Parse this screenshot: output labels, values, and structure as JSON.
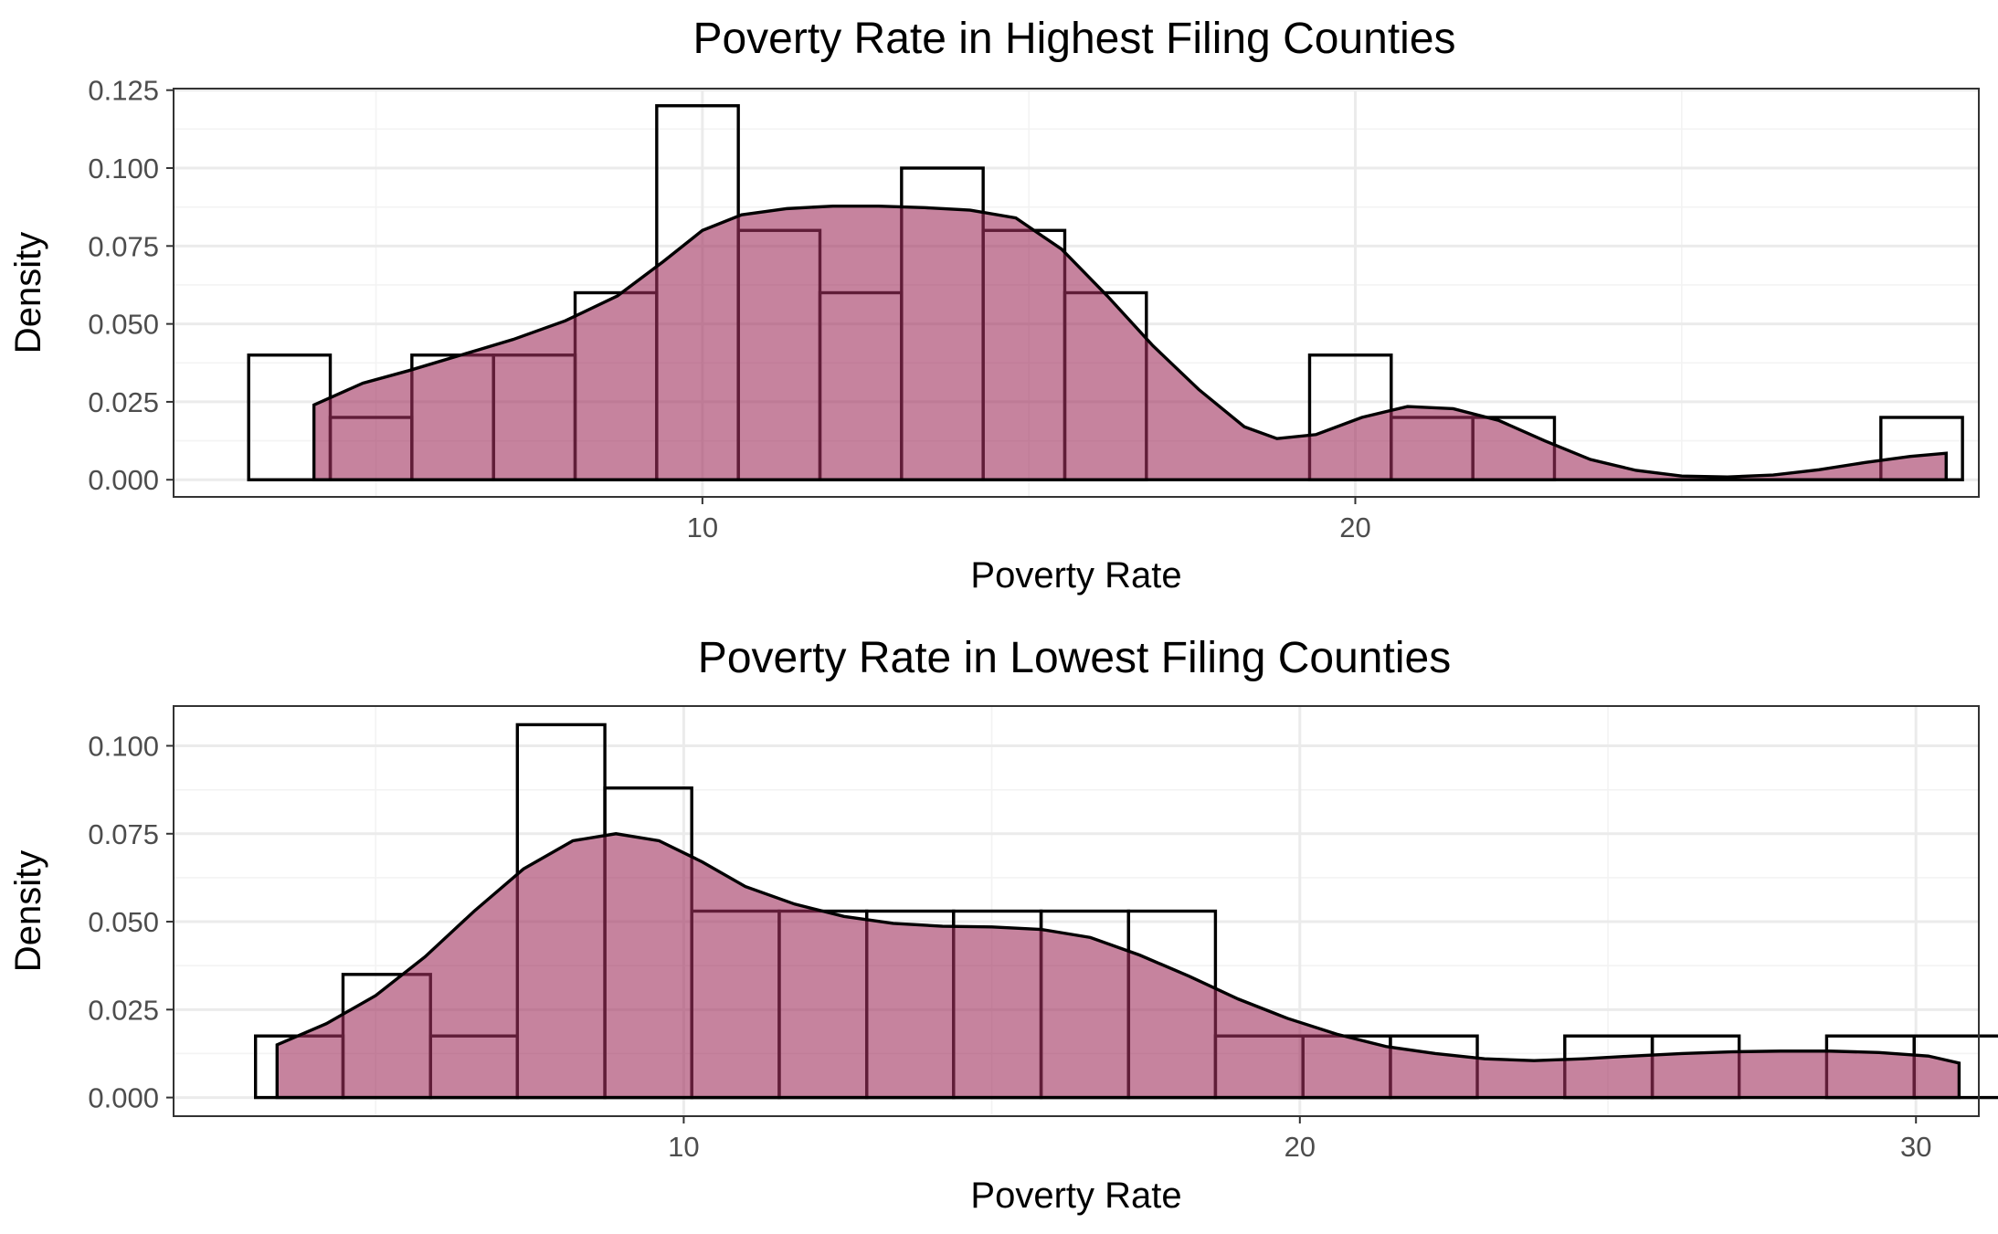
{
  "colors": {
    "density_fill": "#a0315e",
    "density_fill_opacity": 0.6,
    "bar_outline": "#000000",
    "panel_background": "#ffffff",
    "grid": "#ebebeb"
  },
  "chart_data": [
    {
      "type": "histogram",
      "title": "Poverty Rate in Highest Filing Counties",
      "xlabel": "Poverty Rate",
      "ylabel": "Density",
      "xlim": [
        1.9,
        29.55
      ],
      "ylim": [
        -0.0055,
        0.1255
      ],
      "x_ticks": [
        10,
        20
      ],
      "x_tick_labels": [
        "10",
        "20"
      ],
      "x_minor_ticks": [
        5,
        15,
        25
      ],
      "y_ticks": [
        0,
        0.025,
        0.05,
        0.075,
        0.1,
        0.125
      ],
      "y_tick_labels": [
        "0.000",
        "0.025",
        "0.050",
        "0.075",
        "0.100",
        "0.125"
      ],
      "grid": true,
      "bins": [
        {
          "x0": 3.05,
          "x1": 4.3,
          "density": 0.04
        },
        {
          "x0": 4.3,
          "x1": 5.55,
          "density": 0.02
        },
        {
          "x0": 5.55,
          "x1": 6.8,
          "density": 0.04
        },
        {
          "x0": 6.8,
          "x1": 8.05,
          "density": 0.04
        },
        {
          "x0": 8.05,
          "x1": 9.3,
          "density": 0.06
        },
        {
          "x0": 9.3,
          "x1": 10.55,
          "density": 0.12
        },
        {
          "x0": 10.55,
          "x1": 11.8,
          "density": 0.08
        },
        {
          "x0": 11.8,
          "x1": 13.05,
          "density": 0.06
        },
        {
          "x0": 13.05,
          "x1": 14.3,
          "density": 0.1
        },
        {
          "x0": 14.3,
          "x1": 15.55,
          "density": 0.08
        },
        {
          "x0": 15.55,
          "x1": 16.8,
          "density": 0.06
        },
        {
          "x0": 16.8,
          "x1": 18.05,
          "density": 0.0
        },
        {
          "x0": 18.05,
          "x1": 19.3,
          "density": 0.0
        },
        {
          "x0": 19.3,
          "x1": 20.55,
          "density": 0.04
        },
        {
          "x0": 20.55,
          "x1": 21.8,
          "density": 0.02
        },
        {
          "x0": 21.8,
          "x1": 23.05,
          "density": 0.02
        },
        {
          "x0": 23.05,
          "x1": 24.3,
          "density": 0.0
        },
        {
          "x0": 24.3,
          "x1": 25.55,
          "density": 0.0
        },
        {
          "x0": 25.55,
          "x1": 26.8,
          "density": 0.0
        },
        {
          "x0": 26.8,
          "x1": 28.05,
          "density": 0.0
        },
        {
          "x0": 28.05,
          "x1": 29.3,
          "density": 0.02
        }
      ],
      "density_curve": {
        "x": [
          4.05,
          4.8,
          5.5,
          6.3,
          7.1,
          7.9,
          8.7,
          9.4,
          10.0,
          10.6,
          11.3,
          12.0,
          12.7,
          13.4,
          14.1,
          14.8,
          15.5,
          16.2,
          16.9,
          17.6,
          18.3,
          18.8,
          19.4,
          20.1,
          20.8,
          21.5,
          22.2,
          22.9,
          23.6,
          24.3,
          25.0,
          25.7,
          26.4,
          27.1,
          27.8,
          28.5,
          29.05
        ],
        "y": [
          0.024,
          0.031,
          0.035,
          0.04,
          0.045,
          0.051,
          0.059,
          0.07,
          0.08,
          0.085,
          0.087,
          0.0878,
          0.0878,
          0.0873,
          0.0865,
          0.084,
          0.074,
          0.059,
          0.043,
          0.029,
          0.017,
          0.0132,
          0.0145,
          0.02,
          0.0235,
          0.0228,
          0.019,
          0.0125,
          0.0065,
          0.003,
          0.0012,
          0.0009,
          0.0015,
          0.0032,
          0.0055,
          0.0075,
          0.0085
        ]
      }
    },
    {
      "type": "histogram",
      "title": "Poverty Rate in Lowest Filing Counties",
      "xlabel": "Poverty Rate",
      "ylabel": "Density",
      "xlim": [
        1.72,
        31.02
      ],
      "ylim": [
        -0.0053,
        0.1113
      ],
      "x_ticks": [
        10,
        20,
        30
      ],
      "x_tick_labels": [
        "10",
        "20",
        "30"
      ],
      "x_minor_ticks": [
        5,
        15,
        25
      ],
      "y_ticks": [
        0,
        0.025,
        0.05,
        0.075,
        0.1
      ],
      "y_tick_labels": [
        "0.000",
        "0.025",
        "0.050",
        "0.075",
        "0.100"
      ],
      "grid": true,
      "bins": [
        {
          "x0": 3.05,
          "x1": 4.47,
          "density": 0.0175
        },
        {
          "x0": 4.47,
          "x1": 5.89,
          "density": 0.035
        },
        {
          "x0": 5.89,
          "x1": 7.3,
          "density": 0.0175
        },
        {
          "x0": 7.3,
          "x1": 8.72,
          "density": 0.106
        },
        {
          "x0": 8.72,
          "x1": 10.13,
          "density": 0.088
        },
        {
          "x0": 10.13,
          "x1": 11.55,
          "density": 0.053
        },
        {
          "x0": 11.55,
          "x1": 12.97,
          "density": 0.053
        },
        {
          "x0": 12.97,
          "x1": 14.38,
          "density": 0.053
        },
        {
          "x0": 14.38,
          "x1": 15.8,
          "density": 0.053
        },
        {
          "x0": 15.8,
          "x1": 17.22,
          "density": 0.053
        },
        {
          "x0": 17.22,
          "x1": 18.63,
          "density": 0.053
        },
        {
          "x0": 18.63,
          "x1": 20.05,
          "density": 0.0175
        },
        {
          "x0": 20.05,
          "x1": 21.47,
          "density": 0.0175
        },
        {
          "x0": 21.47,
          "x1": 22.88,
          "density": 0.0175
        },
        {
          "x0": 22.88,
          "x1": 24.3,
          "density": 0.0
        },
        {
          "x0": 24.3,
          "x1": 25.72,
          "density": 0.0175
        },
        {
          "x0": 25.72,
          "x1": 27.13,
          "density": 0.0175
        },
        {
          "x0": 27.13,
          "x1": 28.55,
          "density": 0.0
        },
        {
          "x0": 28.55,
          "x1": 29.97,
          "density": 0.0175
        },
        {
          "x0": 29.97,
          "x1": 31.38,
          "density": 0.0175
        }
      ],
      "density_curve": {
        "x": [
          3.4,
          4.2,
          5.0,
          5.8,
          6.6,
          7.4,
          8.2,
          8.9,
          9.6,
          10.3,
          11.0,
          11.8,
          12.6,
          13.4,
          14.2,
          15.0,
          15.8,
          16.6,
          17.4,
          18.2,
          19.0,
          19.8,
          20.6,
          21.4,
          22.2,
          23.0,
          23.8,
          24.6,
          25.4,
          26.2,
          27.0,
          27.8,
          28.6,
          29.4,
          30.2,
          30.7
        ],
        "y": [
          0.015,
          0.021,
          0.029,
          0.04,
          0.053,
          0.065,
          0.073,
          0.075,
          0.073,
          0.067,
          0.06,
          0.055,
          0.0515,
          0.0495,
          0.0487,
          0.0485,
          0.0478,
          0.0455,
          0.0405,
          0.0345,
          0.028,
          0.0225,
          0.018,
          0.0145,
          0.0125,
          0.011,
          0.0105,
          0.011,
          0.0118,
          0.0125,
          0.013,
          0.0132,
          0.0132,
          0.0128,
          0.0118,
          0.0098
        ]
      }
    }
  ]
}
